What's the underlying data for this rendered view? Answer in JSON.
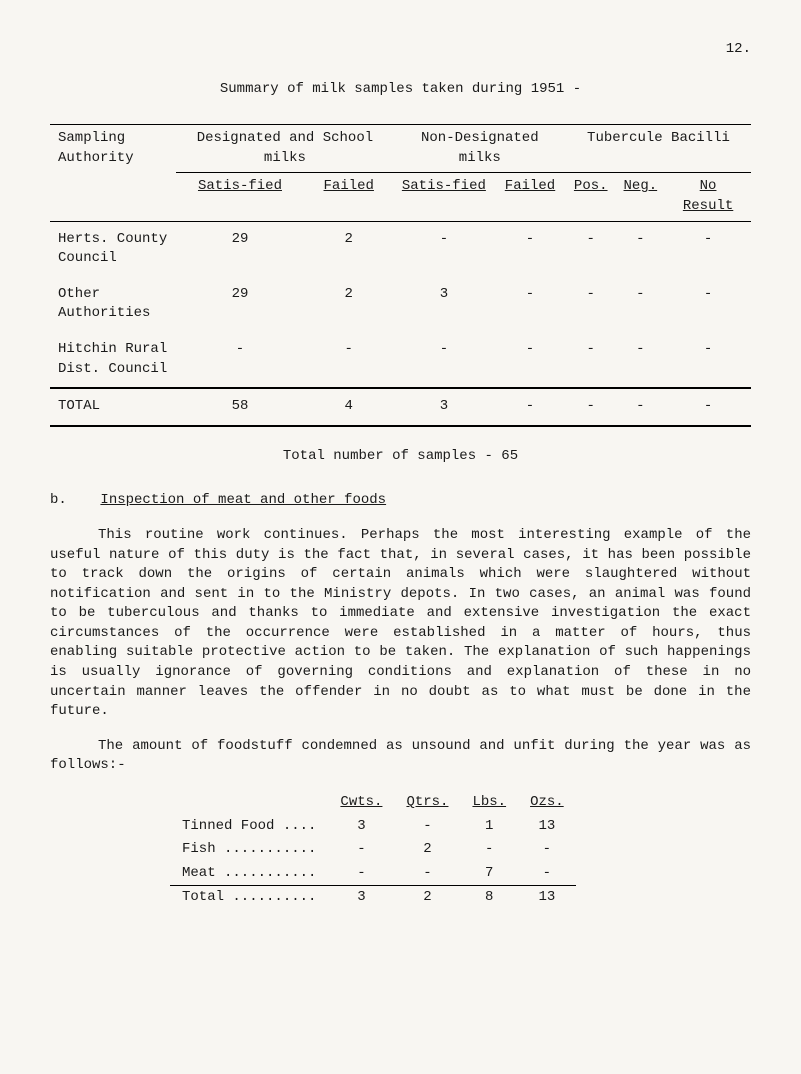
{
  "page_number": "12.",
  "title": "Summary of milk samples taken during 1951 -",
  "table": {
    "headers": {
      "sampling": "Sampling Authority",
      "designated": "Designated and School milks",
      "nondesignated": "Non-Designated milks",
      "tubercule": "Tubercule Bacilli"
    },
    "subheaders": {
      "satis1": "Satis-fied",
      "failed1": "Failed",
      "satis2": "Satis-fied",
      "failed2": "Failed",
      "pos": "Pos.",
      "neg": "Neg.",
      "no_result": "No Result"
    },
    "rows": [
      {
        "auth": "Herts. County Council",
        "c1": "29",
        "c2": "2",
        "c3": "-",
        "c4": "-",
        "c5": "-",
        "c6": "-",
        "c7": "-"
      },
      {
        "auth": "Other Authorities",
        "c1": "29",
        "c2": "2",
        "c3": "3",
        "c4": "-",
        "c5": "-",
        "c6": "-",
        "c7": "-"
      },
      {
        "auth": "Hitchin Rural Dist. Council",
        "c1": "-",
        "c2": "-",
        "c3": "-",
        "c4": "-",
        "c5": "-",
        "c6": "-",
        "c7": "-"
      }
    ],
    "total": {
      "label": "TOTAL",
      "c1": "58",
      "c2": "4",
      "c3": "3",
      "c4": "-",
      "c5": "-",
      "c6": "-",
      "c7": "-"
    }
  },
  "total_samples": "Total number of samples - 65",
  "section_b_label": "b.",
  "section_b_title": "Inspection of meat and other foods",
  "para1": "This routine work continues. Perhaps the most interesting example of the useful nature of this duty is the fact that, in several cases, it has been possible to track down the origins of certain animals which were slaughtered without notification and sent in to the Ministry depots. In two cases, an animal was found to be tuberculous and thanks to immediate and extensive investigation the exact circumstances of the occurrence were established in a matter of hours, thus enabling suitable protective action to be taken. The explanation of such happenings is usually ignorance of governing conditions and explanation of these in no uncertain manner leaves the offender in no doubt as to what must be done in the future.",
  "para2": "The amount of foodstuff condemned as unsound and unfit during the year was as follows:-",
  "food_table": {
    "headers": {
      "cwts": "Cwts.",
      "qtrs": "Qtrs.",
      "lbs": "Lbs.",
      "ozs": "Ozs."
    },
    "rows": [
      {
        "label": "Tinned Food ....",
        "cwts": "3",
        "qtrs": "-",
        "lbs": "1",
        "ozs": "13"
      },
      {
        "label": "Fish ...........",
        "cwts": "-",
        "qtrs": "2",
        "lbs": "-",
        "ozs": "-"
      },
      {
        "label": "Meat ...........",
        "cwts": "-",
        "qtrs": "-",
        "lbs": "7",
        "ozs": "-"
      }
    ],
    "total": {
      "label": "Total ..........",
      "cwts": "3",
      "qtrs": "2",
      "lbs": "8",
      "ozs": "13"
    }
  }
}
